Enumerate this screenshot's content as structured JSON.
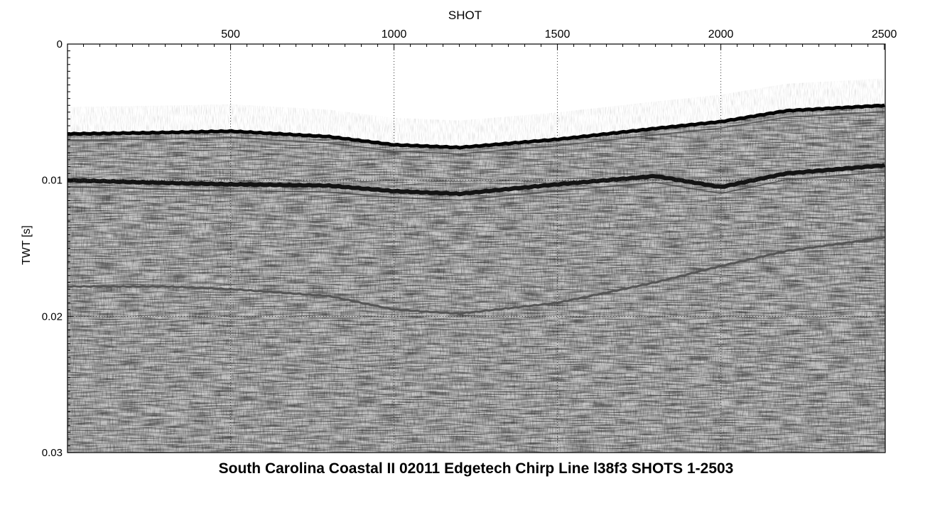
{
  "chart_data": {
    "type": "heatmap",
    "subtype": "seismic-profile",
    "title": "South Carolina Coastal II 02011 Edgetech Chirp Line l38f3 SHOTS 1-2503",
    "xlabel": "SHOT",
    "ylabel": "TWT [s]",
    "x_axis_position": "top",
    "xlim": [
      1,
      2503
    ],
    "ylim": [
      0,
      0.03
    ],
    "y_inverted": true,
    "x_ticks": [
      500,
      1000,
      1500,
      2000,
      2500
    ],
    "x_tick_labels": [
      "500",
      "1000",
      "1500",
      "2000",
      "2500"
    ],
    "y_ticks": [
      0,
      0.01,
      0.02,
      0.03
    ],
    "y_tick_labels": [
      "0",
      "0.01",
      "0.02",
      "0.03"
    ],
    "grid": "dotted",
    "colormap": "grayscale",
    "reflectors": [
      {
        "name": "seafloor",
        "shots": [
          1,
          300,
          500,
          800,
          1000,
          1200,
          1500,
          1800,
          2000,
          2200,
          2503
        ],
        "twt": [
          0.0066,
          0.0065,
          0.0064,
          0.0068,
          0.0074,
          0.0076,
          0.007,
          0.0062,
          0.0057,
          0.0049,
          0.0045
        ]
      },
      {
        "name": "subbottom",
        "shots": [
          1,
          300,
          500,
          800,
          1000,
          1200,
          1500,
          1800,
          2000,
          2200,
          2503
        ],
        "twt": [
          0.01,
          0.0102,
          0.0103,
          0.0104,
          0.0108,
          0.011,
          0.0103,
          0.0097,
          0.0105,
          0.0095,
          0.0089
        ]
      },
      {
        "name": "deep-reflector",
        "shots": [
          1,
          300,
          500,
          800,
          1000,
          1200,
          1500,
          1800,
          2000,
          2200,
          2503
        ],
        "twt": [
          0.0178,
          0.0178,
          0.018,
          0.0185,
          0.0195,
          0.0198,
          0.019,
          0.0175,
          0.0163,
          0.0152,
          0.0142
        ]
      }
    ]
  }
}
